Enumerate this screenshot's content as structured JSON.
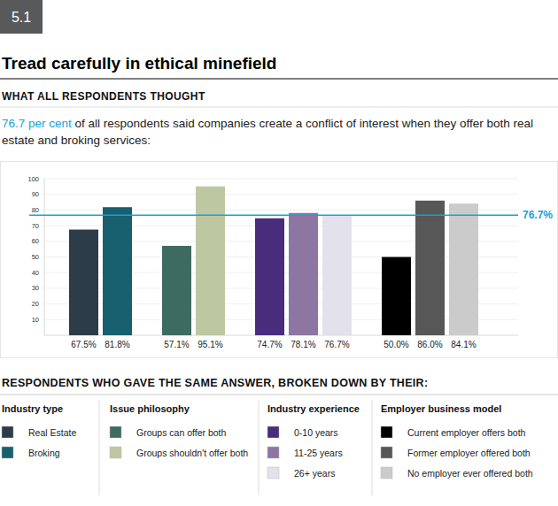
{
  "chart_data": {
    "type": "bar",
    "badge": "5.1",
    "title": "Tread carefully in ethical minefield",
    "subtitle": "WHAT ALL RESPONDENTS THOUGHT",
    "lead": {
      "highlight": "76.7 per cent",
      "text": " of all respondents said companies create a conflict of interest when they offer both real estate and broking services:"
    },
    "legend_title": "RESPONDENTS WHO GAVE THE SAME ANSWER, BROKEN DOWN BY THEIR:",
    "ylim": [
      0,
      100
    ],
    "yticks": [
      10,
      20,
      30,
      40,
      50,
      60,
      70,
      80,
      90,
      100
    ],
    "grid": true,
    "data_labels": true,
    "reference_line": {
      "value": 76.7,
      "label": "76.7%"
    },
    "series": [
      {
        "name": "Industry type",
        "categories": [
          "Real Estate",
          "Broking"
        ],
        "values": [
          67.5,
          81.8
        ],
        "value_labels": [
          "67.5%",
          "81.8%"
        ],
        "colors": [
          "#2c3d49",
          "#17606f"
        ]
      },
      {
        "name": "Issue philosophy",
        "categories": [
          "Groups can offer both",
          "Groups shouldn't offer both"
        ],
        "values": [
          57.1,
          95.1
        ],
        "value_labels": [
          "57.1%",
          "95.1%"
        ],
        "colors": [
          "#3e6b5f",
          "#bdc8a2"
        ]
      },
      {
        "name": "Industry experience",
        "categories": [
          "0-10 years",
          "11-25 years",
          "26+ years"
        ],
        "values": [
          74.7,
          78.1,
          76.7
        ],
        "value_labels": [
          "74.7%",
          "78.1%",
          "76.7%"
        ],
        "colors": [
          "#4a2c7c",
          "#8e76a2",
          "#e3e1ec"
        ]
      },
      {
        "name": "Employer business model",
        "categories": [
          "Current employer offers both",
          "Former employer offered both",
          "No employer ever offered both"
        ],
        "values": [
          50.0,
          86.0,
          84.1
        ],
        "value_labels": [
          "50.0%",
          "86.0%",
          "84.1%"
        ],
        "colors": [
          "#000000",
          "#575757",
          "#cbcbcb"
        ]
      }
    ]
  }
}
